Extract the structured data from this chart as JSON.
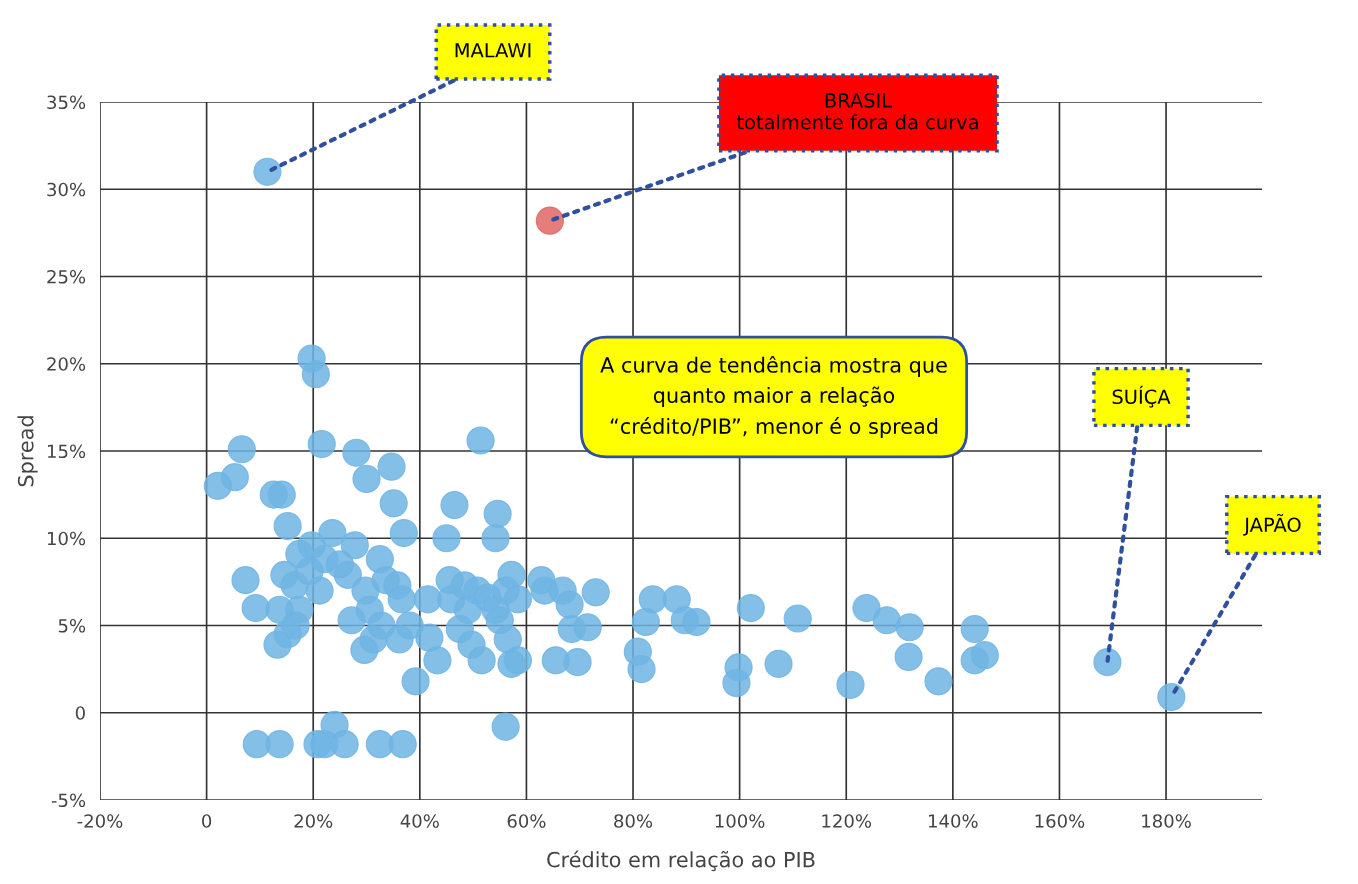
{
  "chart_data": {
    "type": "scatter",
    "xlabel": "Crédito em relação ao PIB",
    "ylabel": "Spread",
    "xlim": [
      -20,
      198
    ],
    "ylim": [
      -5,
      35
    ],
    "xticks": [
      {
        "value": -20,
        "label": "-20%"
      },
      0,
      {
        "value": 20,
        "label": "20%"
      },
      {
        "value": 40,
        "label": "40%"
      },
      {
        "value": 60,
        "label": "60%"
      },
      {
        "value": 80,
        "label": "80%"
      },
      {
        "value": 100,
        "label": "100%"
      },
      {
        "value": 120,
        "label": "120%"
      },
      {
        "value": 140,
        "label": "140%"
      },
      {
        "value": 160,
        "label": "160%"
      },
      {
        "value": 180,
        "label": "180%"
      }
    ],
    "yticks": [
      {
        "value": -5,
        "label": "-5%"
      },
      0,
      {
        "value": 5,
        "label": "5%"
      },
      {
        "value": 10,
        "label": "10%"
      },
      {
        "value": 15,
        "label": "15%"
      },
      {
        "value": 20,
        "label": "20%"
      },
      {
        "value": 25,
        "label": "25%"
      },
      {
        "value": 30,
        "label": "30%"
      },
      {
        "value": 35,
        "label": "35%"
      }
    ],
    "grid": true,
    "marker": "circle",
    "series": [
      {
        "color": "#6fb4e3",
        "x": [
          11.4,
          19.7,
          20.5,
          21.6,
          6.6,
          5.3,
          2.1,
          12.6,
          14.1,
          15.2,
          28.1,
          30.0,
          34.7,
          35.1,
          37.0,
          51.4,
          46.5,
          45.0,
          54.6,
          54.2,
          23.6,
          27.8,
          19.7,
          17.4,
          22.1,
          25.0,
          19.3,
          14.6,
          16.5,
          7.3,
          21.2,
          26.5,
          32.5,
          33.6,
          29.8,
          35.8,
          36.6,
          9.2,
          13.7,
          17.4,
          16.7,
          15.2,
          13.3,
          27.2,
          30.6,
          32.8,
          31.3,
          29.6,
          36.2,
          38.1,
          39.2,
          41.5,
          41.8,
          43.3,
          45.9,
          45.6,
          48.4,
          50.8,
          52.7,
          49.0,
          47.5,
          49.7,
          51.6,
          55.0,
          56.1,
          57.2,
          58.4,
          56.5,
          57.2,
          58.4,
          54.2,
          63.4,
          62.8,
          66.8,
          68.1,
          73.0,
          68.5,
          71.5,
          65.5,
          69.6,
          56.1,
          83.7,
          88.2,
          89.7,
          91.9,
          82.4,
          80.9,
          81.6,
          102.1,
          110.9,
          99.8,
          99.4,
          107.3,
          123.8,
          127.6,
          131.9,
          131.7,
          137.3,
          120.8,
          144.1,
          144.1,
          146.0,
          169.0,
          181.0,
          9.4,
          13.7,
          20.8,
          22.1,
          24.0,
          25.9,
          32.5,
          36.8
        ],
        "values": [
          31.0,
          20.3,
          19.4,
          15.4,
          15.1,
          13.5,
          13.0,
          12.5,
          12.5,
          10.7,
          14.9,
          13.4,
          14.1,
          12.0,
          10.3,
          15.6,
          11.9,
          10.0,
          11.4,
          10.0,
          10.3,
          9.6,
          9.6,
          9.1,
          8.8,
          8.5,
          8.1,
          7.9,
          7.3,
          7.6,
          7.0,
          7.9,
          8.8,
          7.6,
          7.0,
          7.3,
          6.5,
          6.0,
          5.9,
          5.9,
          5.0,
          4.5,
          3.9,
          5.3,
          5.9,
          5.0,
          4.2,
          3.6,
          4.2,
          5.0,
          1.8,
          6.5,
          4.3,
          3.0,
          6.5,
          7.6,
          7.3,
          7.0,
          6.6,
          5.9,
          4.8,
          3.9,
          3.0,
          5.3,
          7.0,
          7.9,
          6.5,
          4.2,
          2.8,
          3.0,
          5.9,
          7.0,
          7.6,
          7.0,
          6.2,
          6.9,
          4.8,
          4.9,
          3.0,
          2.9,
          -0.8,
          6.5,
          6.5,
          5.3,
          5.2,
          5.2,
          3.5,
          2.5,
          6.0,
          5.4,
          2.6,
          1.7,
          2.8,
          6.0,
          5.3,
          4.9,
          3.2,
          1.8,
          1.6,
          4.8,
          3.0,
          3.3,
          2.9,
          0.9,
          -1.8,
          -1.8,
          -1.8,
          -1.8,
          -0.7,
          -1.8,
          -1.8,
          -1.8
        ]
      },
      {
        "color": "#e06666",
        "x": [
          64.4
        ],
        "values": [
          28.2
        ]
      }
    ],
    "annotations": [
      {
        "text": "MALAWI",
        "x": 11.4,
        "y": 31.0
      },
      {
        "text": "BRASIL\ntotalmente fora da curva",
        "x": 64.4,
        "y": 28.2
      },
      "A curva de tendência mostra que\nquanto maior a relação\n“crédito/PIB”, menor é o spread",
      {
        "text": "SUÍÇA",
        "x": 169.0,
        "y": 2.9
      },
      {
        "text": "JAPÃO",
        "x": 181.0,
        "y": 0.9
      }
    ]
  }
}
